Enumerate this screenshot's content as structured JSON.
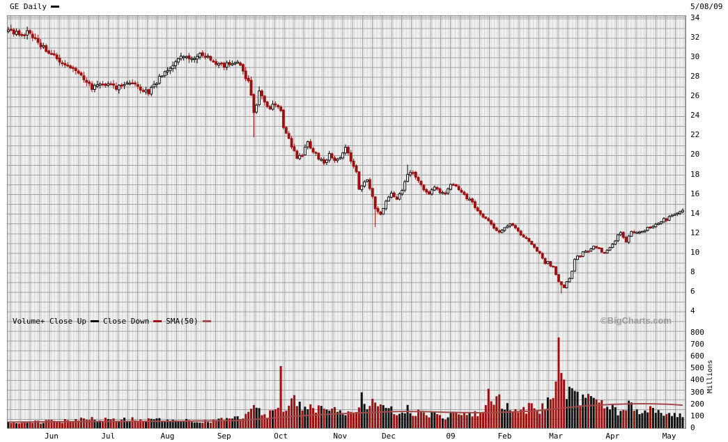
{
  "header": {
    "title": "GE Daily",
    "date": "5/08/09"
  },
  "watermark": "©BigCharts.com",
  "legend": {
    "items": [
      {
        "label": "Volume+ Close Up",
        "swatch": "#000000"
      },
      {
        "label": "Close Down",
        "swatch": "#9e1111"
      },
      {
        "label": "SMA(50)",
        "swatch": "#a34a4a"
      }
    ]
  },
  "colors": {
    "candle_up": "#000000",
    "candle_up_fill": "#f2f2f2",
    "candle_down": "#9e1111",
    "volume_up": "#111111",
    "volume_down": "#9e1111",
    "sma_line": "#a34a4a"
  },
  "axes": {
    "price_ticks": [
      34,
      32,
      30,
      28,
      26,
      24,
      22,
      20,
      18,
      16,
      14,
      12,
      10,
      8,
      6,
      4
    ],
    "volume_ticks": [
      800,
      700,
      600,
      500,
      400,
      300,
      200,
      100,
      0
    ],
    "volume_unit": "Millions",
    "months": [
      {
        "label": "Jun",
        "day": 16
      },
      {
        "label": "Jul",
        "day": 37
      },
      {
        "label": "Aug",
        "day": 59
      },
      {
        "label": "Sep",
        "day": 80
      },
      {
        "label": "Oct",
        "day": 101
      },
      {
        "label": "Nov",
        "day": 123
      },
      {
        "label": "Dec",
        "day": 141
      },
      {
        "label": "09",
        "day": 164
      },
      {
        "label": "Feb",
        "day": 184
      },
      {
        "label": "Mar",
        "day": 203
      },
      {
        "label": "Apr",
        "day": 224
      },
      {
        "label": "May",
        "day": 245
      }
    ]
  },
  "chart_data": {
    "type": "candlestick+volume",
    "symbol": "GE",
    "interval": "Daily",
    "as_of": "5/08/09",
    "num_days": 251,
    "price_axis_range": [
      4,
      34
    ],
    "volume_axis_range_millions": [
      0,
      800
    ],
    "close_anchors": [
      [
        0,
        32.7
      ],
      [
        4,
        32.4
      ],
      [
        7,
        32.5
      ],
      [
        10,
        31.8
      ],
      [
        13,
        31.0
      ],
      [
        16,
        30.4
      ],
      [
        19,
        29.6
      ],
      [
        22,
        29.1
      ],
      [
        25,
        28.5
      ],
      [
        28,
        27.7
      ],
      [
        31,
        26.9
      ],
      [
        34,
        27.3
      ],
      [
        37,
        27.2
      ],
      [
        40,
        26.9
      ],
      [
        43,
        27.2
      ],
      [
        46,
        27.5
      ],
      [
        49,
        26.8
      ],
      [
        52,
        26.3
      ],
      [
        55,
        27.5
      ],
      [
        58,
        28.6
      ],
      [
        61,
        29.3
      ],
      [
        64,
        30.0
      ],
      [
        66,
        30.3
      ],
      [
        68,
        29.8
      ],
      [
        71,
        30.4
      ],
      [
        74,
        29.9
      ],
      [
        77,
        29.4
      ],
      [
        80,
        29.1
      ],
      [
        83,
        29.5
      ],
      [
        85,
        29.3
      ],
      [
        87,
        28.6
      ],
      [
        89,
        27.4
      ],
      [
        90,
        26.0
      ],
      [
        91,
        24.3
      ],
      [
        92,
        24.9
      ],
      [
        93,
        26.5
      ],
      [
        95,
        25.5
      ],
      [
        97,
        24.8
      ],
      [
        99,
        25.3
      ],
      [
        101,
        24.4
      ],
      [
        102,
        22.8
      ],
      [
        104,
        21.6
      ],
      [
        106,
        20.3
      ],
      [
        107,
        19.6
      ],
      [
        109,
        20.1
      ],
      [
        111,
        21.3
      ],
      [
        113,
        20.4
      ],
      [
        115,
        19.7
      ],
      [
        117,
        19.2
      ],
      [
        119,
        20.0
      ],
      [
        121,
        19.5
      ],
      [
        123,
        19.6
      ],
      [
        125,
        20.7
      ],
      [
        127,
        19.4
      ],
      [
        129,
        18.2
      ],
      [
        130,
        16.5
      ],
      [
        131,
        16.9
      ],
      [
        133,
        17.4
      ],
      [
        135,
        15.8
      ],
      [
        136,
        14.5
      ],
      [
        138,
        13.9
      ],
      [
        140,
        15.2
      ],
      [
        142,
        16.1
      ],
      [
        144,
        15.4
      ],
      [
        146,
        16.4
      ],
      [
        148,
        17.9
      ],
      [
        150,
        18.3
      ],
      [
        152,
        17.3
      ],
      [
        154,
        16.5
      ],
      [
        156,
        16.0
      ],
      [
        158,
        16.7
      ],
      [
        160,
        16.2
      ],
      [
        162,
        16.1
      ],
      [
        164,
        17.0
      ],
      [
        166,
        16.8
      ],
      [
        168,
        16.2
      ],
      [
        170,
        15.6
      ],
      [
        172,
        15.1
      ],
      [
        174,
        14.3
      ],
      [
        176,
        13.7
      ],
      [
        178,
        13.2
      ],
      [
        180,
        12.5
      ],
      [
        182,
        12.1
      ],
      [
        184,
        12.6
      ],
      [
        186,
        12.9
      ],
      [
        188,
        12.5
      ],
      [
        190,
        11.8
      ],
      [
        192,
        11.4
      ],
      [
        194,
        10.8
      ],
      [
        196,
        10.2
      ],
      [
        197,
        9.9
      ],
      [
        198,
        9.4
      ],
      [
        199,
        8.9
      ],
      [
        200,
        9.1
      ],
      [
        201,
        8.6
      ],
      [
        202,
        8.5
      ],
      [
        203,
        7.7
      ],
      [
        204,
        7.0
      ],
      [
        205,
        6.7
      ],
      [
        206,
        6.4
      ],
      [
        207,
        7.0
      ],
      [
        208,
        7.4
      ],
      [
        209,
        8.1
      ],
      [
        210,
        9.3
      ],
      [
        211,
        9.6
      ],
      [
        212,
        9.5
      ],
      [
        213,
        10.0
      ],
      [
        215,
        10.2
      ],
      [
        217,
        10.7
      ],
      [
        219,
        10.4
      ],
      [
        220,
        10.1
      ],
      [
        221,
        9.9
      ],
      [
        222,
        10.2
      ],
      [
        223,
        10.5
      ],
      [
        225,
        11.2
      ],
      [
        226,
        11.8
      ],
      [
        227,
        12.1
      ],
      [
        228,
        11.6
      ],
      [
        229,
        11.1
      ],
      [
        230,
        11.6
      ],
      [
        231,
        12.1
      ],
      [
        233,
        12.1
      ],
      [
        235,
        12.2
      ],
      [
        237,
        12.5
      ],
      [
        239,
        12.7
      ],
      [
        241,
        13.0
      ],
      [
        243,
        13.4
      ],
      [
        244,
        13.3
      ],
      [
        245,
        13.6
      ],
      [
        246,
        13.8
      ],
      [
        247,
        14.0
      ],
      [
        248,
        14.1
      ],
      [
        249,
        14.2
      ],
      [
        250,
        14.3
      ]
    ],
    "key_lows": [
      [
        91,
        21.8
      ],
      [
        136,
        12.6
      ],
      [
        205,
        5.8
      ]
    ],
    "key_highs": [
      [
        93,
        27.0
      ],
      [
        148,
        19.0
      ]
    ],
    "volume_anchors": [
      [
        0,
        55
      ],
      [
        10,
        50
      ],
      [
        20,
        58
      ],
      [
        28,
        80
      ],
      [
        31,
        95
      ],
      [
        34,
        65
      ],
      [
        38,
        72
      ],
      [
        44,
        75
      ],
      [
        50,
        65
      ],
      [
        55,
        70
      ],
      [
        60,
        55
      ],
      [
        66,
        60
      ],
      [
        72,
        55
      ],
      [
        78,
        65
      ],
      [
        82,
        75
      ],
      [
        86,
        90
      ],
      [
        88,
        120
      ],
      [
        90,
        150
      ],
      [
        92,
        170
      ],
      [
        94,
        150
      ],
      [
        96,
        115
      ],
      [
        99,
        125
      ],
      [
        102,
        180
      ],
      [
        104,
        210
      ],
      [
        106,
        230
      ],
      [
        108,
        195
      ],
      [
        110,
        205
      ],
      [
        113,
        175
      ],
      [
        116,
        160
      ],
      [
        119,
        150
      ],
      [
        122,
        135
      ],
      [
        125,
        145
      ],
      [
        128,
        165
      ],
      [
        131,
        220
      ],
      [
        133,
        185
      ],
      [
        135,
        215
      ],
      [
        136,
        240
      ],
      [
        138,
        215
      ],
      [
        140,
        185
      ],
      [
        142,
        165
      ],
      [
        144,
        150
      ],
      [
        146,
        145
      ],
      [
        148,
        155
      ],
      [
        150,
        135
      ],
      [
        152,
        125
      ],
      [
        154,
        115
      ],
      [
        156,
        105
      ],
      [
        158,
        115
      ],
      [
        160,
        95
      ],
      [
        162,
        85
      ],
      [
        164,
        115
      ],
      [
        166,
        125
      ],
      [
        168,
        105
      ],
      [
        170,
        115
      ],
      [
        172,
        125
      ],
      [
        174,
        135
      ],
      [
        176,
        150
      ],
      [
        178,
        165
      ],
      [
        180,
        210
      ],
      [
        182,
        225
      ],
      [
        184,
        185
      ],
      [
        186,
        155
      ],
      [
        188,
        135
      ],
      [
        190,
        145
      ],
      [
        192,
        165
      ],
      [
        194,
        180
      ],
      [
        196,
        155
      ],
      [
        198,
        175
      ],
      [
        200,
        255
      ],
      [
        201,
        300
      ],
      [
        202,
        330
      ],
      [
        203,
        420
      ],
      [
        205,
        455
      ],
      [
        206,
        330
      ],
      [
        207,
        275
      ],
      [
        208,
        390
      ],
      [
        209,
        375
      ],
      [
        210,
        305
      ],
      [
        211,
        255
      ],
      [
        212,
        235
      ],
      [
        214,
        295
      ],
      [
        216,
        255
      ],
      [
        218,
        225
      ],
      [
        220,
        185
      ],
      [
        222,
        165
      ],
      [
        224,
        155
      ],
      [
        226,
        135
      ],
      [
        228,
        165
      ],
      [
        230,
        225
      ],
      [
        232,
        165
      ],
      [
        234,
        140
      ],
      [
        236,
        125
      ],
      [
        238,
        150
      ],
      [
        240,
        135
      ],
      [
        242,
        115
      ],
      [
        244,
        125
      ],
      [
        246,
        135
      ],
      [
        248,
        110
      ],
      [
        250,
        95
      ]
    ],
    "volume_spikes": [
      [
        101,
        520
      ],
      [
        131,
        300
      ],
      [
        178,
        330
      ],
      [
        204,
        760
      ],
      [
        230,
        230
      ]
    ],
    "volume_sma50_anchors": [
      [
        0,
        50
      ],
      [
        30,
        55
      ],
      [
        60,
        57
      ],
      [
        85,
        63
      ],
      [
        95,
        78
      ],
      [
        105,
        98
      ],
      [
        115,
        112
      ],
      [
        125,
        122
      ],
      [
        135,
        132
      ],
      [
        145,
        140
      ],
      [
        155,
        138
      ],
      [
        165,
        131
      ],
      [
        175,
        128
      ],
      [
        185,
        134
      ],
      [
        195,
        143
      ],
      [
        205,
        168
      ],
      [
        215,
        188
      ],
      [
        225,
        200
      ],
      [
        235,
        205
      ],
      [
        245,
        200
      ],
      [
        250,
        192
      ]
    ]
  }
}
